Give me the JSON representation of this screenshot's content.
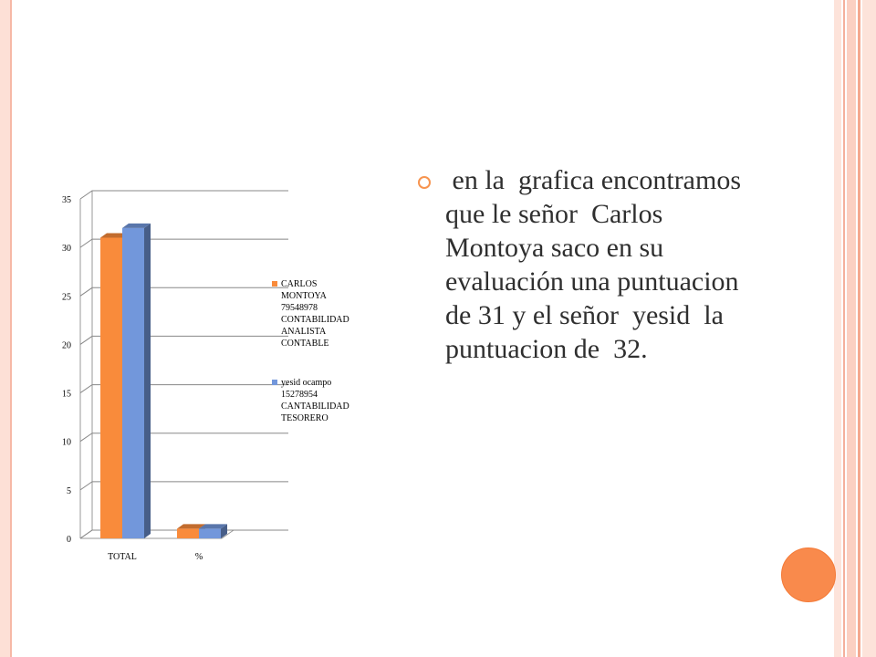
{
  "colors": {
    "accent": "#f7944f",
    "circle": "#f98a4c",
    "series1": "#f98b3b",
    "series2": "#7297db",
    "border_light": "#fde0d6",
    "border_mid": "#f6b8a6"
  },
  "slide": {
    "bullet_text": " en la  grafica encontramos que le señor  Carlos Montoya saco en su evaluación una puntuacion de 31 y el señor  yesid  la puntuacion de  32."
  },
  "chart_data": {
    "type": "bar",
    "categories": [
      "TOTAL",
      "%"
    ],
    "series": [
      {
        "name": "CARLOS MONTOYA 79548978 CONTABILIDAD ANALISTA CONTABLE",
        "values": [
          31,
          1
        ]
      },
      {
        "name": "yesid  ocampo 15278954 CANTABILIDAD TESORERO",
        "values": [
          32,
          1
        ]
      }
    ],
    "ylim": [
      0,
      35
    ],
    "yticks": [
      0,
      5,
      10,
      15,
      20,
      25,
      30,
      35
    ],
    "grid": true,
    "legend": "right",
    "style": "3d-clustered"
  }
}
